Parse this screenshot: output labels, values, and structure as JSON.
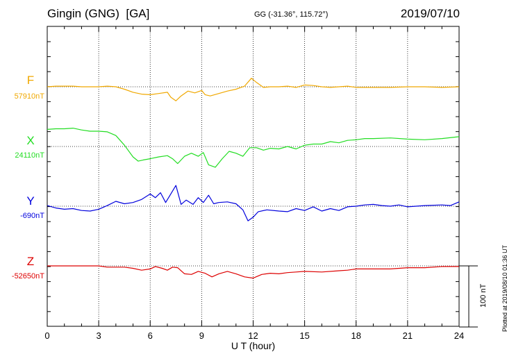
{
  "header": {
    "station": "Gingin (GNG)  [GA]",
    "coords": "GG (-31.36°, 115.72°)",
    "date": "2019/07/10"
  },
  "side": {
    "plotted": "Plotted at 2019/08/10 01:36 UT",
    "scale_label": "100 nT"
  },
  "chart_data": {
    "type": "line",
    "xlabel": "U T (hour)",
    "xlim": [
      0,
      24
    ],
    "xticks": [
      0,
      3,
      6,
      9,
      12,
      15,
      18,
      21,
      24
    ],
    "grid": true,
    "scale_bar_nT": 100,
    "series": [
      {
        "name": "F",
        "base_label": "57910nT",
        "base": 57910,
        "color": "#f0a800",
        "points": [
          [
            0,
            57910
          ],
          [
            0.5,
            57911
          ],
          [
            1,
            57911
          ],
          [
            1.5,
            57911
          ],
          [
            2,
            57910
          ],
          [
            2.5,
            57910
          ],
          [
            3,
            57910
          ],
          [
            3.5,
            57911
          ],
          [
            4,
            57910
          ],
          [
            4.5,
            57906
          ],
          [
            5,
            57901
          ],
          [
            5.5,
            57898
          ],
          [
            6,
            57897
          ],
          [
            6.5,
            57899
          ],
          [
            7,
            57901
          ],
          [
            7.2,
            57893
          ],
          [
            7.5,
            57887
          ],
          [
            7.8,
            57895
          ],
          [
            8.2,
            57903
          ],
          [
            8.6,
            57900
          ],
          [
            9,
            57904
          ],
          [
            9.2,
            57897
          ],
          [
            9.5,
            57895
          ],
          [
            10,
            57899
          ],
          [
            10.5,
            57903
          ],
          [
            11,
            57906
          ],
          [
            11.5,
            57911
          ],
          [
            11.9,
            57924
          ],
          [
            12.2,
            57917
          ],
          [
            12.6,
            57909
          ],
          [
            13,
            57910
          ],
          [
            13.5,
            57910
          ],
          [
            14,
            57911
          ],
          [
            14.5,
            57909
          ],
          [
            15,
            57913
          ],
          [
            15.5,
            57912
          ],
          [
            16,
            57910
          ],
          [
            16.5,
            57909
          ],
          [
            17,
            57910
          ],
          [
            17.5,
            57911
          ],
          [
            18,
            57909
          ],
          [
            19,
            57909
          ],
          [
            20,
            57909
          ],
          [
            21,
            57910
          ],
          [
            22,
            57910
          ],
          [
            23,
            57909
          ],
          [
            24,
            57910
          ]
        ]
      },
      {
        "name": "X",
        "base_label": "24110nT",
        "base": 24110,
        "color": "#22dd22",
        "points": [
          [
            0,
            24138
          ],
          [
            0.5,
            24139
          ],
          [
            1,
            24139
          ],
          [
            1.5,
            24140
          ],
          [
            2,
            24137
          ],
          [
            2.5,
            24135
          ],
          [
            3,
            24135
          ],
          [
            3.5,
            24134
          ],
          [
            4,
            24128
          ],
          [
            4.5,
            24112
          ],
          [
            5,
            24093
          ],
          [
            5.3,
            24086
          ],
          [
            5.6,
            24088
          ],
          [
            6,
            24090
          ],
          [
            6.5,
            24093
          ],
          [
            7,
            24095
          ],
          [
            7.3,
            24090
          ],
          [
            7.6,
            24082
          ],
          [
            8,
            24094
          ],
          [
            8.4,
            24099
          ],
          [
            8.8,
            24094
          ],
          [
            9.1,
            24100
          ],
          [
            9.4,
            24080
          ],
          [
            9.8,
            24076
          ],
          [
            10.2,
            24090
          ],
          [
            10.6,
            24102
          ],
          [
            11,
            24099
          ],
          [
            11.4,
            24094
          ],
          [
            11.8,
            24108
          ],
          [
            12.2,
            24108
          ],
          [
            12.6,
            24104
          ],
          [
            13,
            24107
          ],
          [
            13.5,
            24106
          ],
          [
            14,
            24110
          ],
          [
            14.5,
            24106
          ],
          [
            15,
            24112
          ],
          [
            15.5,
            24114
          ],
          [
            16,
            24114
          ],
          [
            16.5,
            24118
          ],
          [
            17,
            24116
          ],
          [
            17.5,
            24120
          ],
          [
            18,
            24121
          ],
          [
            18.5,
            24123
          ],
          [
            19,
            24123
          ],
          [
            20,
            24124
          ],
          [
            21,
            24122
          ],
          [
            22,
            24121
          ],
          [
            23,
            24123
          ],
          [
            24,
            24126
          ]
        ]
      },
      {
        "name": "Y",
        "base_label": "-690nT",
        "base": -690,
        "color": "#0000dd",
        "points": [
          [
            0,
            -689
          ],
          [
            0.5,
            -693
          ],
          [
            1,
            -695
          ],
          [
            1.5,
            -694
          ],
          [
            2,
            -697
          ],
          [
            2.5,
            -698
          ],
          [
            3,
            -695
          ],
          [
            3.5,
            -689
          ],
          [
            4,
            -682
          ],
          [
            4.5,
            -686
          ],
          [
            5,
            -684
          ],
          [
            5.5,
            -679
          ],
          [
            6,
            -670
          ],
          [
            6.3,
            -676
          ],
          [
            6.6,
            -668
          ],
          [
            6.9,
            -684
          ],
          [
            7.2,
            -670
          ],
          [
            7.5,
            -656
          ],
          [
            7.8,
            -687
          ],
          [
            8.1,
            -680
          ],
          [
            8.5,
            -687
          ],
          [
            8.8,
            -676
          ],
          [
            9.1,
            -684
          ],
          [
            9.4,
            -672
          ],
          [
            9.7,
            -686
          ],
          [
            10,
            -684
          ],
          [
            10.5,
            -683
          ],
          [
            11,
            -686
          ],
          [
            11.4,
            -696
          ],
          [
            11.7,
            -714
          ],
          [
            12,
            -708
          ],
          [
            12.3,
            -699
          ],
          [
            12.8,
            -696
          ],
          [
            13.5,
            -698
          ],
          [
            14,
            -699
          ],
          [
            14.5,
            -694
          ],
          [
            15,
            -697
          ],
          [
            15.5,
            -691
          ],
          [
            16,
            -698
          ],
          [
            16.5,
            -694
          ],
          [
            17,
            -697
          ],
          [
            17.5,
            -691
          ],
          [
            18,
            -690
          ],
          [
            18.5,
            -688
          ],
          [
            19,
            -687
          ],
          [
            19.5,
            -689
          ],
          [
            20,
            -690
          ],
          [
            20.5,
            -688
          ],
          [
            21,
            -691
          ],
          [
            22,
            -689
          ],
          [
            23,
            -688
          ],
          [
            23.5,
            -689
          ],
          [
            24,
            -683
          ]
        ]
      },
      {
        "name": "Z",
        "base_label": "-52650nT",
        "base": -52650,
        "color": "#dd0000",
        "points": [
          [
            0,
            -52650
          ],
          [
            1,
            -52650
          ],
          [
            2,
            -52650
          ],
          [
            3,
            -52650
          ],
          [
            3.5,
            -52652
          ],
          [
            4,
            -52652
          ],
          [
            4.5,
            -52652
          ],
          [
            5,
            -52654
          ],
          [
            5.5,
            -52657
          ],
          [
            6,
            -52655
          ],
          [
            6.3,
            -52651
          ],
          [
            6.7,
            -52654
          ],
          [
            7,
            -52657
          ],
          [
            7.3,
            -52652
          ],
          [
            7.6,
            -52653
          ],
          [
            8,
            -52663
          ],
          [
            8.4,
            -52664
          ],
          [
            8.8,
            -52659
          ],
          [
            9.2,
            -52662
          ],
          [
            9.6,
            -52668
          ],
          [
            10,
            -52663
          ],
          [
            10.5,
            -52659
          ],
          [
            11,
            -52663
          ],
          [
            11.5,
            -52668
          ],
          [
            12,
            -52670
          ],
          [
            12.5,
            -52664
          ],
          [
            13,
            -52662
          ],
          [
            13.5,
            -52663
          ],
          [
            14,
            -52661
          ],
          [
            14.5,
            -52660
          ],
          [
            15,
            -52659
          ],
          [
            16,
            -52660
          ],
          [
            17,
            -52658
          ],
          [
            17.5,
            -52657
          ],
          [
            18,
            -52655
          ],
          [
            19,
            -52655
          ],
          [
            20,
            -52655
          ],
          [
            21,
            -52653
          ],
          [
            22,
            -52653
          ],
          [
            23,
            -52651
          ],
          [
            24,
            -52651
          ]
        ]
      }
    ]
  }
}
